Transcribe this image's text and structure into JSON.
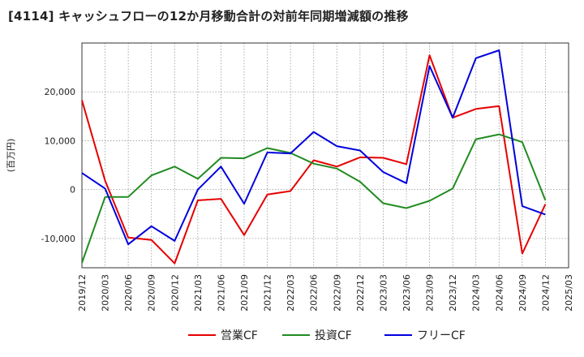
{
  "title": "[4114]  キャッシュフローの12か月移動合計の対前年同期増減額の推移",
  "chart_data": {
    "type": "line",
    "title": "[4114]  キャッシュフローの12か月移動合計の対前年同期増減額の推移",
    "ylabel": "(百万円)",
    "xlabel": "",
    "ylim": [
      -16000,
      30000
    ],
    "yticks": [
      -10000,
      0,
      10000,
      20000
    ],
    "ytick_labels": [
      "-10,000",
      "0",
      "10,000",
      "20,000"
    ],
    "categories": [
      "2019/12",
      "2020/03",
      "2020/06",
      "2020/09",
      "2020/12",
      "2021/03",
      "2021/06",
      "2021/09",
      "2021/12",
      "2022/03",
      "2022/06",
      "2022/09",
      "2022/12",
      "2023/03",
      "2023/06",
      "2023/09",
      "2023/12",
      "2024/03",
      "2024/06",
      "2024/09",
      "2024/12",
      "2025/03"
    ],
    "grid": true,
    "legend_position": "bottom",
    "series": [
      {
        "name": "営業CF",
        "color": "#e60000",
        "values": [
          18300,
          1800,
          -9800,
          -10300,
          -15100,
          -2200,
          -1900,
          -9300,
          -1000,
          -300,
          6000,
          4700,
          6600,
          6500,
          5200,
          27500,
          14700,
          16500,
          17100,
          -13100,
          -3000,
          null
        ]
      },
      {
        "name": "投資CF",
        "color": "#228b22",
        "values": [
          -15000,
          -1500,
          -1500,
          2900,
          4700,
          2200,
          6500,
          6400,
          8500,
          7500,
          5300,
          4300,
          1600,
          -2800,
          -3800,
          -2300,
          200,
          10300,
          11300,
          9700,
          -2200,
          null
        ]
      },
      {
        "name": "フリーCF",
        "color": "#0000dd",
        "values": [
          3400,
          200,
          -11200,
          -7500,
          -10500,
          0,
          4700,
          -2900,
          7600,
          7400,
          11800,
          8900,
          8000,
          3600,
          1300,
          25300,
          14700,
          26900,
          28500,
          -3400,
          -5100,
          null
        ]
      }
    ]
  }
}
